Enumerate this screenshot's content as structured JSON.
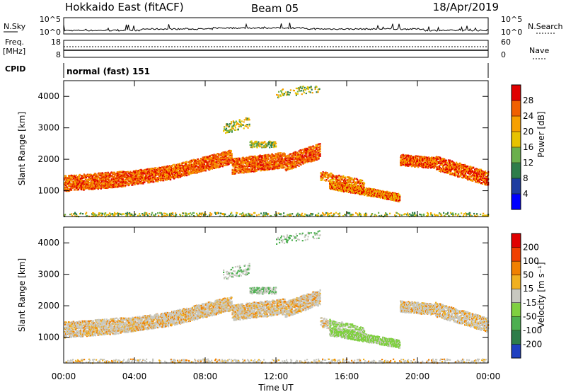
{
  "header": {
    "radar": "Hokkaido East (fitACF)",
    "beam": "Beam 05",
    "date": "18/Apr/2019"
  },
  "panels": {
    "nsky_label": "N.Sky",
    "nsearch_label": "N.Search",
    "freq_label": "Freq.",
    "freq_unit": "[MHz]",
    "nave_label": "Nave",
    "cpid_label": "CPID",
    "cpid_text": "normal (fast) 151",
    "noise_ticks": [
      "10^5",
      "10^0"
    ],
    "freq_ticks": [
      "18",
      "8"
    ],
    "nave_ticks": [
      "60",
      "0"
    ]
  },
  "chart_data": [
    {
      "type": "heatmap",
      "name": "Power",
      "ylabel": "Slant Range [km]",
      "xlabel": "Time UT",
      "x_ticks": [
        "00:00",
        "04:00",
        "08:00",
        "12:00",
        "16:00",
        "20:00",
        "00:00"
      ],
      "x_range_hours": [
        0,
        24
      ],
      "y_ticks": [
        1000,
        2000,
        3000,
        4000
      ],
      "y_range_km": [
        180,
        4500
      ],
      "colorbar_label": "Power [dB]",
      "colorbar_ticks": [
        4,
        8,
        12,
        16,
        20,
        24,
        28
      ],
      "colorbar_colors": [
        "#0000ff",
        "#1e3ca0",
        "#2e7d4a",
        "#6ab04c",
        "#e6c200",
        "#f7a000",
        "#f06000",
        "#e00000"
      ]
    },
    {
      "type": "heatmap",
      "name": "Velocity",
      "ylabel": "Slant Range [km]",
      "xlabel": "Time UT",
      "x_ticks": [
        "00:00",
        "04:00",
        "08:00",
        "12:00",
        "16:00",
        "20:00",
        "00:00"
      ],
      "x_range_hours": [
        0,
        24
      ],
      "y_ticks": [
        1000,
        2000,
        3000,
        4000
      ],
      "y_range_km": [
        180,
        4500
      ],
      "colorbar_label": "Velocity [m s⁻¹]",
      "colorbar_ticks": [
        200,
        100,
        50,
        15,
        -15,
        -50,
        -100,
        -200
      ],
      "colorbar_colors": [
        "#2040c0",
        "#2e7d4a",
        "#4caf50",
        "#7fd040",
        "#c8c8c0",
        "#f0b020",
        "#f08000",
        "#f04000",
        "#e00000"
      ]
    }
  ],
  "colors": {
    "ground_scatter": "#bdbdb5"
  }
}
